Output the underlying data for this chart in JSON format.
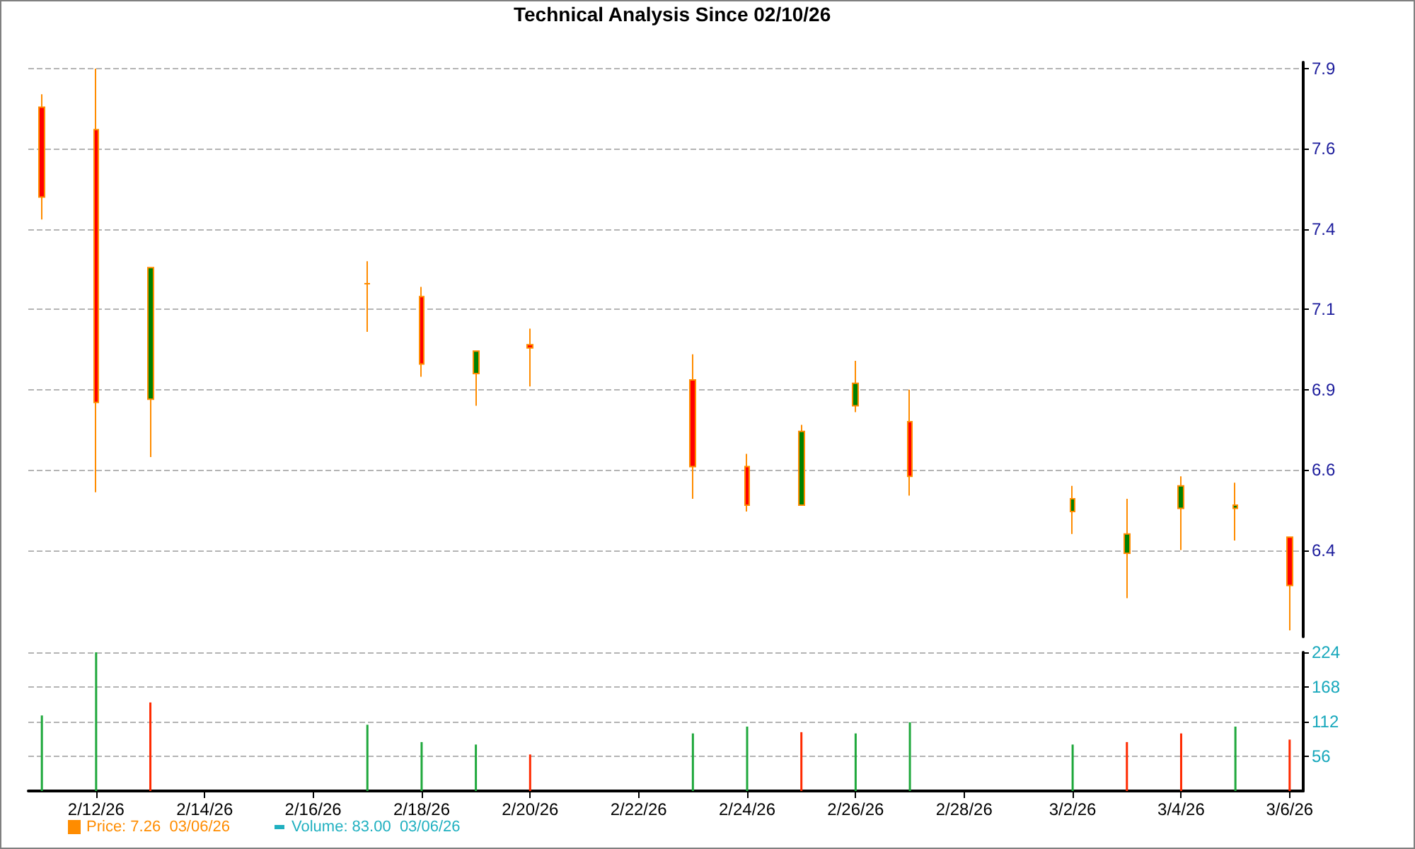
{
  "chart_data": [
    {
      "type": "candlestick",
      "title": "Technical Analysis Since 02/10/26",
      "x": [
        "--02-11",
        "--02-12",
        "--02-13",
        "--02-17",
        "--02-18",
        "--02-19",
        "--02-20",
        "--02-23",
        "--02-24",
        "--02-25",
        "--02-26",
        "--02-27",
        "--03-02",
        "--03-03",
        "--03-04",
        "--03-05",
        "--03-06"
      ],
      "series": [
        {
          "name": "Price: 7.26  03/06/26",
          "color": "#ff8c00",
          "colors": [
            "#ff0000",
            "#ff0000",
            "#008000",
            "#ff8c00",
            "#ff0000",
            "#008000",
            "#ff0000",
            "#ff0000",
            "#ff0000",
            "#008000",
            "#008000",
            "#ff0000",
            "#008000",
            "#008000",
            "#008000",
            "#008000",
            "#ff0000"
          ],
          "ohlc": [
            [
              7.78,
              7.82,
              7.43,
              7.5
            ],
            [
              7.71,
              7.9,
              6.58,
              6.86
            ],
            [
              6.87,
              7.28,
              6.69,
              7.28
            ],
            [
              7.23,
              7.3,
              7.08,
              7.23
            ],
            [
              7.19,
              7.22,
              6.94,
              6.98
            ],
            [
              6.95,
              7.02,
              6.85,
              7.02
            ],
            [
              7.04,
              7.09,
              6.91,
              7.03
            ],
            [
              6.93,
              7.01,
              6.56,
              6.66
            ],
            [
              6.66,
              6.7,
              6.52,
              6.54
            ],
            [
              6.54,
              6.79,
              6.54,
              6.77
            ],
            [
              6.85,
              6.99,
              6.83,
              6.92
            ],
            [
              6.8,
              6.9,
              6.57,
              6.63
            ],
            [
              6.52,
              6.6,
              6.45,
              6.56
            ],
            [
              6.39,
              6.56,
              6.25,
              6.45
            ],
            [
              6.53,
              6.63,
              6.4,
              6.6
            ],
            [
              6.53,
              6.61,
              6.43,
              6.54
            ],
            [
              6.44,
              6.44,
              6.15,
              6.29
            ]
          ]
        }
      ],
      "xlim": [
        "--02-10T18:00",
        "--03-06T06:00"
      ],
      "ylim": [
        6.13,
        7.92
      ],
      "yticks": [
        7.9,
        {
          "value": 7.65,
          "label": "7.6"
        },
        7.4,
        {
          "value": 7.15,
          "label": "7.1"
        },
        6.9,
        {
          "value": 6.65,
          "label": "6.6"
        },
        6.4
      ],
      "grid": "y",
      "legend": "bottom left",
      "tick_labels": "y"
    },
    {
      "type": "bar",
      "x": [
        "--02-11",
        "--02-12",
        "--02-13",
        "--02-17",
        "--02-18",
        "--02-19",
        "--02-20",
        "--02-23",
        "--02-24",
        "--02-25",
        "--02-26",
        "--02-27",
        "--03-02",
        "--03-03",
        "--03-04",
        "--03-05",
        "--03-06"
      ],
      "series": [
        {
          "name": "Volume: 83.00  03/06/26",
          "color": "#20b0c0",
          "colors": [
            "#1fa83c",
            "#1fa83c",
            "#ff2a00",
            "#1fa83c",
            "#1fa83c",
            "#1fa83c",
            "#ff2a00",
            "#1fa83c",
            "#1fa83c",
            "#ff2a00",
            "#1fa83c",
            "#1fa83c",
            "#1fa83c",
            "#ff2a00",
            "#ff2a00",
            "#1fa83c",
            "#ff2a00"
          ],
          "values": [
            122,
            224,
            143,
            107,
            79,
            75,
            59,
            93,
            104,
            95,
            93,
            111,
            75,
            79,
            93,
            104,
            83
          ]
        }
      ],
      "xlim": [
        "--02-10T18:00",
        "--03-06T06:00"
      ],
      "xticks": [
        {
          "value": "--02-12",
          "label": "2/12/26"
        },
        {
          "value": "--02-14",
          "label": "2/14/26"
        },
        {
          "value": "--02-16",
          "label": "2/16/26"
        },
        {
          "value": "--02-18",
          "label": "2/18/26"
        },
        {
          "value": "--02-20",
          "label": "2/20/26"
        },
        {
          "value": "--02-22",
          "label": "2/22/26"
        },
        {
          "value": "--02-24",
          "label": "2/24/26"
        },
        {
          "value": "--02-26",
          "label": "2/26/26"
        },
        {
          "value": "--02-28",
          "label": "2/28/26"
        },
        {
          "value": "--03-02",
          "label": "3/2/26"
        },
        {
          "value": "--03-04",
          "label": "3/4/26"
        },
        {
          "value": "--03-06",
          "label": "3/6/26"
        }
      ],
      "ylim": [
        0,
        224
      ],
      "yticks": [
        56,
        112,
        168,
        224
      ],
      "grid": "y",
      "legend": "bottom left"
    }
  ]
}
